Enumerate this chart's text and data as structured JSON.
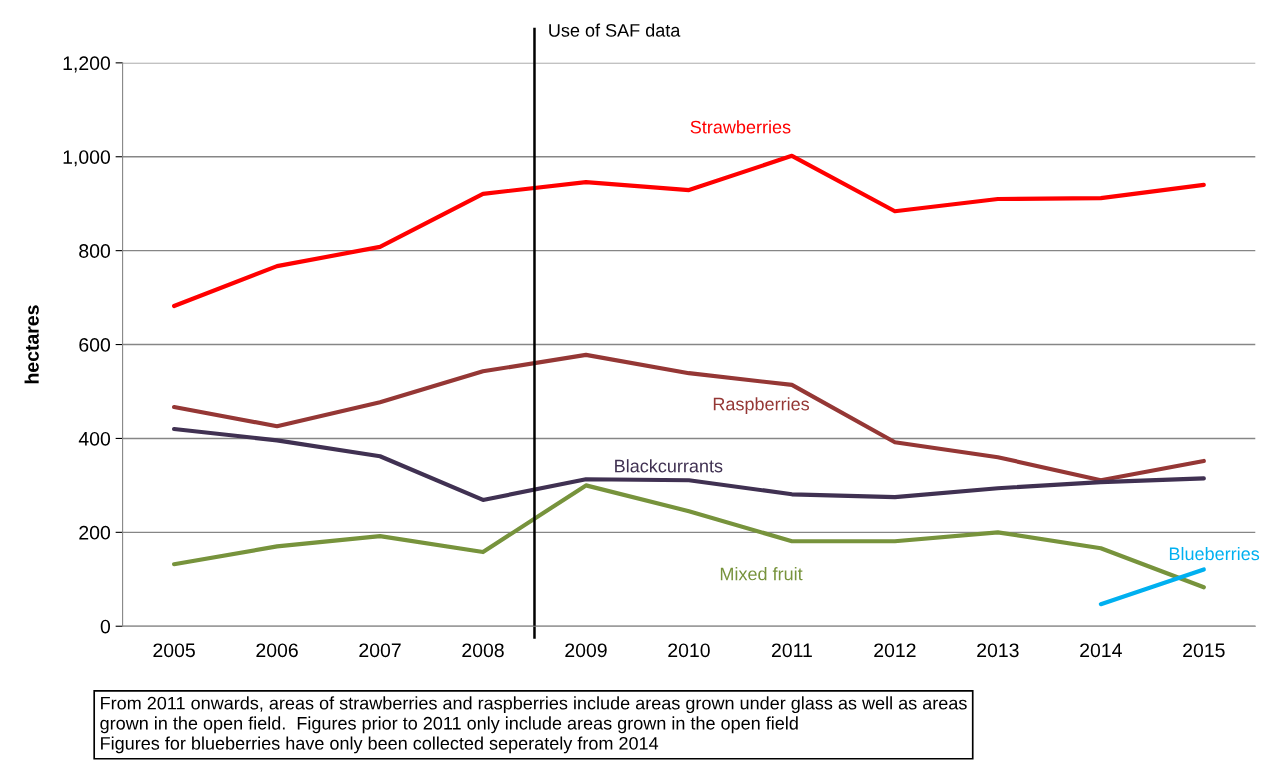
{
  "chart_data": {
    "type": "line",
    "ylabel": "hectares",
    "x": [
      2005,
      2006,
      2007,
      2008,
      2009,
      2010,
      2011,
      2012,
      2013,
      2014,
      2015
    ],
    "xlim": [
      2004.5,
      2015.5
    ],
    "xticks": [
      2005,
      2006,
      2007,
      2008,
      2009,
      2010,
      2011,
      2012,
      2013,
      2014,
      2015
    ],
    "ylim": [
      0,
      1200
    ],
    "yticks": [
      {
        "value": 0,
        "label": "0"
      },
      {
        "value": 200,
        "label": "200"
      },
      {
        "value": 400,
        "label": "400"
      },
      {
        "value": 600,
        "label": "600"
      },
      {
        "value": 800,
        "label": "800"
      },
      {
        "value": 1000,
        "label": "1,000"
      },
      {
        "value": 1200,
        "label": "1,200"
      }
    ],
    "grid": "y",
    "legend": false,
    "series": [
      {
        "name": "Strawberries",
        "color": "#ff0000",
        "values": [
          682,
          767,
          808,
          921,
          946,
          929,
          1002,
          884,
          910,
          912,
          940
        ]
      },
      {
        "name": "Raspberries",
        "color": "#953735",
        "values": [
          467,
          426,
          477,
          543,
          578,
          539,
          514,
          392,
          360,
          311,
          352
        ]
      },
      {
        "name": "Blackcurrants",
        "color": "#403152",
        "values": [
          420,
          396,
          362,
          269,
          313,
          311,
          281,
          275,
          294,
          307,
          315
        ]
      },
      {
        "name": "Mixed fruit",
        "color": "#77933c",
        "values": [
          132,
          170,
          192,
          158,
          300,
          245,
          181,
          181,
          200,
          166,
          83
        ]
      },
      {
        "name": "Blueberries",
        "color": "#00b0f0",
        "values": [
          null,
          null,
          null,
          null,
          null,
          null,
          null,
          null,
          null,
          47,
          121
        ]
      }
    ],
    "ref_lines": [
      {
        "axis": "x",
        "value": 2008.5,
        "label": "Use of SAF data",
        "color": "#000000"
      }
    ],
    "annotations": [
      "From 2011 onwards, areas of strawberries and raspberries include areas grown under glass as well as areas\ngrown in the open field.  Figures prior to 2011 only include areas grown in the open field\nFigures for blueberries have only been collected seperately from 2014"
    ]
  }
}
